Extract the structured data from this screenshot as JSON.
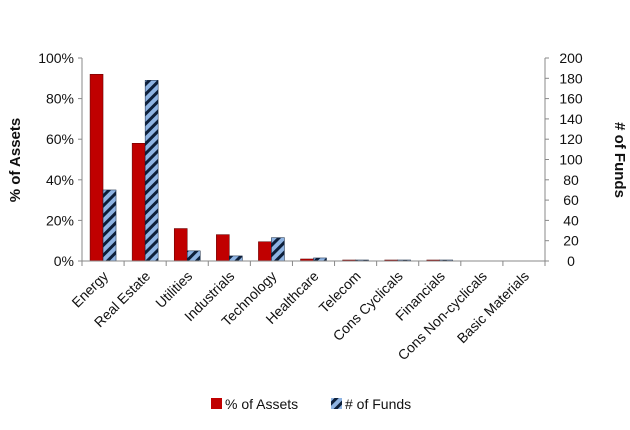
{
  "chart_data": {
    "type": "bar",
    "categories": [
      "Energy",
      "Real Estate",
      "Utilities",
      "Industrials",
      "Technology",
      "Healthcare",
      "Telecom",
      "Cons Cyclicals",
      "Financials",
      "Cons Non-cyclicals",
      "Basic Materials"
    ],
    "series": [
      {
        "name": "% of Assets",
        "axis": "left",
        "color": "#c00000",
        "pattern": "solid",
        "values": [
          92,
          58,
          16,
          13,
          9.5,
          1,
          0.5,
          0.5,
          0.5,
          0,
          0
        ]
      },
      {
        "name": "# of Funds",
        "axis": "right",
        "color": "#8fb4e3",
        "pattern": "diagonal-stripes",
        "values": [
          70,
          178,
          10,
          5,
          23,
          3,
          1,
          1,
          1,
          0,
          0
        ]
      }
    ],
    "y_left": {
      "label": "% of Assets",
      "ylim": [
        0,
        100
      ],
      "ticks": [
        "0%",
        "20%",
        "40%",
        "60%",
        "80%",
        "100%"
      ]
    },
    "y_right": {
      "label": "# of Funds",
      "ylim": [
        0,
        200
      ],
      "ticks": [
        "0",
        "20",
        "40",
        "60",
        "80",
        "100",
        "120",
        "140",
        "160",
        "180",
        "200"
      ]
    },
    "grid": false,
    "legend": {
      "position": "bottom",
      "labels": [
        "% of Assets",
        "# of Funds"
      ]
    }
  }
}
